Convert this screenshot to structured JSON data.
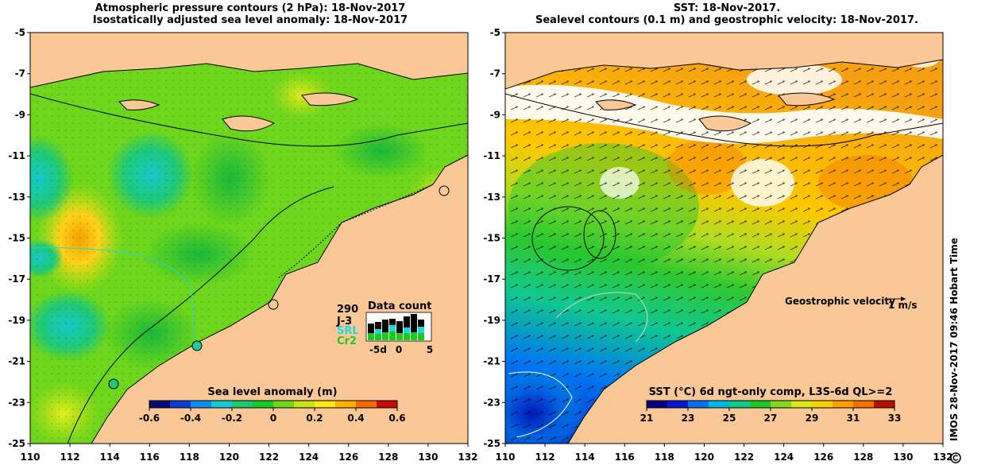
{
  "left_panel": {
    "title_line1": "Atmospheric pressure contours (2 hPa): 18-Nov-2017",
    "title_line2": "Isostatically adjusted sea level anomaly: 18-Nov-2017",
    "colorbar": {
      "label": "Sea level anomaly (m)",
      "ticks": [
        "-0.6",
        "-0.4",
        "-0.2",
        "0",
        "0.2",
        "0.4",
        "0.6"
      ],
      "colors": [
        "#000b7a",
        "#0a3fd6",
        "#0a8ef0",
        "#18c8d8",
        "#1ec872",
        "#18cc2a",
        "#6ed61c",
        "#c8e414",
        "#ffe81a",
        "#ffb000",
        "#f46a00",
        "#c80c00"
      ]
    },
    "data_count": {
      "title": "Data count",
      "total": "290",
      "missions": [
        {
          "name": "J-3",
          "color": "#000000"
        },
        {
          "name": "SRL",
          "color": "#19d9e0"
        },
        {
          "name": "Cr2",
          "color": "#1ec81e"
        }
      ],
      "axis_ticks": [
        "-5d",
        "0",
        "5"
      ]
    },
    "y_ticks": [
      "-5",
      "-7",
      "-9",
      "-11",
      "-13",
      "-15",
      "-17",
      "-19",
      "-21",
      "-23",
      "-25"
    ],
    "x_ticks": [
      "110",
      "112",
      "114",
      "116",
      "118",
      "120",
      "122",
      "124",
      "126",
      "128",
      "130",
      "132"
    ]
  },
  "right_panel": {
    "title_line1": "SST: 18-Nov-2017.",
    "title_line2": "Sealevel contours (0.1 m) and geostrophic velocity: 18-Nov-2017.",
    "colorbar": {
      "label": "SST (°C) 6d ngt-only comp, L3S-6d QL>=2",
      "ticks": [
        "21",
        "23",
        "25",
        "27",
        "29",
        "31",
        "33"
      ],
      "colors": [
        "#000080",
        "#0018d0",
        "#0070f0",
        "#00b8e8",
        "#10c890",
        "#20c830",
        "#80d820",
        "#d8e818",
        "#ffd000",
        "#ffa000",
        "#f07000",
        "#b81000"
      ]
    },
    "velocity_legend": {
      "label": "Geostrophic velocity",
      "scale": "1 m/s"
    },
    "y_ticks": [
      "-5",
      "-7",
      "-9",
      "-11",
      "-13",
      "-15",
      "-17",
      "-19",
      "-21",
      "-23",
      "-25"
    ],
    "x_ticks": [
      "110",
      "112",
      "114",
      "116",
      "118",
      "120",
      "122",
      "124",
      "126",
      "128",
      "130",
      "132"
    ]
  },
  "credit": "IMOS 28-Nov-2017 09:46 Hobart Time",
  "colors": {
    "land": "#fac896",
    "cloud": "#ffffff",
    "coast": "#000000"
  }
}
